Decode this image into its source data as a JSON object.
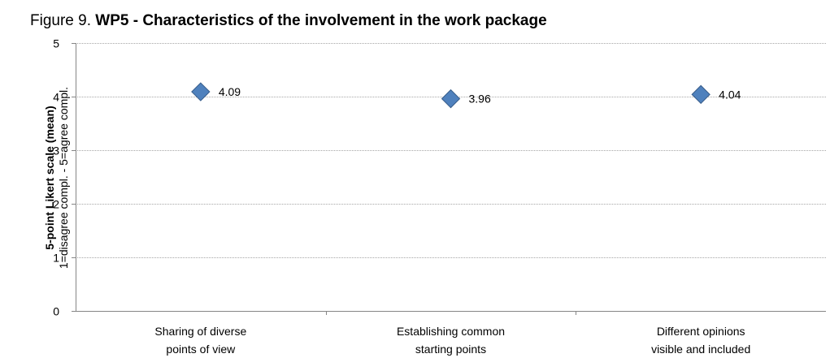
{
  "title": {
    "prefix": "Figure 9. ",
    "main": "WP5 - Characteristics of the involvement in the work package"
  },
  "chart_data": {
    "type": "scatter",
    "marker": "diamond",
    "marker_color": "#4f81bd",
    "marker_edge_color": "#385d8a",
    "grid_color": "#a6a6a6",
    "grid": true,
    "ylabel_line1": "5-point Likert scale (mean)",
    "ylabel_line2": "1=disagree compl. - 5=agree compl.",
    "xlabel": "",
    "ylim": [
      0,
      5
    ],
    "yticks": [
      "0",
      "1",
      "2",
      "3",
      "4",
      "5"
    ],
    "categories": [
      [
        "Sharing of diverse",
        "points of view"
      ],
      [
        "Establishing common",
        "starting points"
      ],
      [
        "Different opinions",
        "visible and included"
      ]
    ],
    "values": [
      4.09,
      3.96,
      4.04
    ],
    "data_labels": [
      "4.09",
      "3.96",
      "4.04"
    ]
  }
}
